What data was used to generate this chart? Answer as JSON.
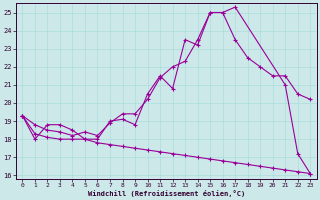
{
  "xlabel": "Windchill (Refroidissement éolien,°C)",
  "background_color": "#cce8e8",
  "line_color": "#990099",
  "xlim": [
    -0.5,
    23.5
  ],
  "ylim": [
    15.8,
    25.5
  ],
  "yticks": [
    16,
    17,
    18,
    19,
    20,
    21,
    22,
    23,
    24,
    25
  ],
  "xticks": [
    0,
    1,
    2,
    3,
    4,
    5,
    6,
    7,
    8,
    9,
    10,
    11,
    12,
    13,
    14,
    15,
    16,
    17,
    18,
    19,
    20,
    21,
    22,
    23
  ],
  "line1_x": [
    0,
    1,
    2,
    3,
    4,
    5,
    6,
    7,
    8,
    9,
    10,
    11,
    12,
    13,
    14,
    15,
    16,
    17,
    21,
    22,
    23
  ],
  "line1_y": [
    19.3,
    18.0,
    18.8,
    18.8,
    18.5,
    18.0,
    18.0,
    19.0,
    19.1,
    18.8,
    20.5,
    21.5,
    20.8,
    23.5,
    23.2,
    25.0,
    25.0,
    25.3,
    21.0,
    17.2,
    16.1
  ],
  "line2_x": [
    0,
    1,
    2,
    3,
    4,
    5,
    6,
    7,
    8,
    9,
    10,
    11,
    12,
    13,
    14,
    15,
    16,
    17,
    18,
    19,
    20,
    21,
    22,
    23
  ],
  "line2_y": [
    19.3,
    18.8,
    18.5,
    18.4,
    18.2,
    18.4,
    18.2,
    18.9,
    19.4,
    19.4,
    20.2,
    21.4,
    22.0,
    22.3,
    23.5,
    25.0,
    25.0,
    23.5,
    22.5,
    22.0,
    21.5,
    21.5,
    20.5,
    20.2
  ],
  "line3_x": [
    0,
    1,
    2,
    3,
    4,
    5,
    6,
    7,
    8,
    9,
    10,
    11,
    12,
    13,
    14,
    15,
    16,
    17,
    18,
    19,
    20,
    21,
    22,
    23
  ],
  "line3_y": [
    19.3,
    18.3,
    18.1,
    18.0,
    18.0,
    18.0,
    17.8,
    17.7,
    17.6,
    17.5,
    17.4,
    17.3,
    17.2,
    17.1,
    17.0,
    16.9,
    16.8,
    16.7,
    16.6,
    16.5,
    16.4,
    16.3,
    16.2,
    16.1
  ]
}
